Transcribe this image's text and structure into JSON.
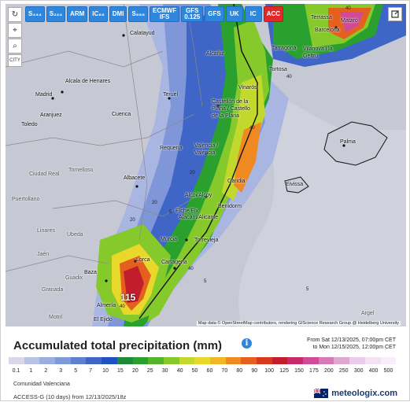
{
  "toolbar": {
    "models": [
      {
        "label": "S₄₄₄",
        "active": false
      },
      {
        "label": "S₂₂₄",
        "active": false
      },
      {
        "label": "ARM",
        "active": false
      },
      {
        "label": "IC₈₈",
        "active": false
      },
      {
        "label": "DMI",
        "active": false
      },
      {
        "label": "S₈₈₈",
        "active": false
      },
      {
        "label": "ECMWF\nIFS",
        "active": false
      },
      {
        "label": "GFS\n0.125",
        "active": false
      },
      {
        "label": "GFS",
        "active": false
      },
      {
        "label": "UK",
        "active": false
      },
      {
        "label": "IC",
        "active": false
      },
      {
        "label": "ACC",
        "active": true
      }
    ],
    "tools": [
      {
        "name": "refresh",
        "glyph": "↻"
      },
      {
        "name": "location",
        "glyph": "⌖"
      },
      {
        "name": "zoom",
        "glyph": "⌕"
      },
      {
        "name": "city-toggle",
        "glyph": "CITY"
      }
    ]
  },
  "map": {
    "attribution": "Map data © OpenStreetMap contributors, rendering GIScience Research Group @ Heidelberg University",
    "max_value": "115",
    "cities": [
      "Calatayud",
      "Alcala de Henares",
      "Madrid",
      "Toledo",
      "Aranjuez",
      "Cuenca",
      "Teruel",
      "Alcañiz",
      "Tortosa",
      "Vinaròs",
      "Castellón de la Plana / Castello de la Plana",
      "Valencia / València",
      "Requena",
      "Albacete",
      "Alcoi/Alcoy",
      "Gandia",
      "Benidorm",
      "Alacant/Alicante",
      "Elche/Elx",
      "Murcia",
      "Torrevieja",
      "Lorca",
      "Cartagena",
      "Baza",
      "Guadix",
      "Granada",
      "Almería",
      "El Ejido",
      "Motril",
      "Jaén",
      "Linares",
      "Ubeda",
      "Ciudad Real",
      "Puertollano",
      "Tomelloso",
      "Tarragona",
      "Barcelona",
      "Terrassa",
      "Mataró",
      "Vilanova i la Geltrú",
      "Palma",
      "Eivissa",
      "Argel"
    ],
    "contours": [
      "40",
      "40",
      "40",
      "20",
      "20",
      "5",
      "5",
      "20",
      "40",
      "40",
      "5"
    ]
  },
  "legend": {
    "title": "Accumulated total precipitation (mm)",
    "date_from": "From Sat 12/13/2025, 07:00pm CET",
    "date_to": "to Mon 12/15/2025, 12:00pm CET",
    "ticks": [
      "0.1",
      "1",
      "2",
      "3",
      "5",
      "7",
      "10",
      "15",
      "20",
      "25",
      "30",
      "40",
      "50",
      "60",
      "70",
      "80",
      "90",
      "100",
      "125",
      "150",
      "175",
      "200",
      "250",
      "300",
      "400",
      "500"
    ],
    "colors": [
      "#d8d8e8",
      "#b9c3e3",
      "#9aaee0",
      "#7f9ad8",
      "#5f80d0",
      "#3f66c6",
      "#1e52c2",
      "#1f8a3a",
      "#2aa12f",
      "#55b52a",
      "#86c92a",
      "#c3d82d",
      "#e8d82a",
      "#f2b526",
      "#ef8a22",
      "#e5601f",
      "#d83a1f",
      "#c21d2a",
      "#c72a6a",
      "#d04a9a",
      "#d77ab8",
      "#e0a6d2",
      "#ebccea",
      "#f2e2f4",
      "#f6eef8"
    ],
    "region": "Comunidad Valenciana",
    "model_run": "ACCESS-G (10 days) from 12/13/2025/18z",
    "brand": "meteologix.com"
  }
}
